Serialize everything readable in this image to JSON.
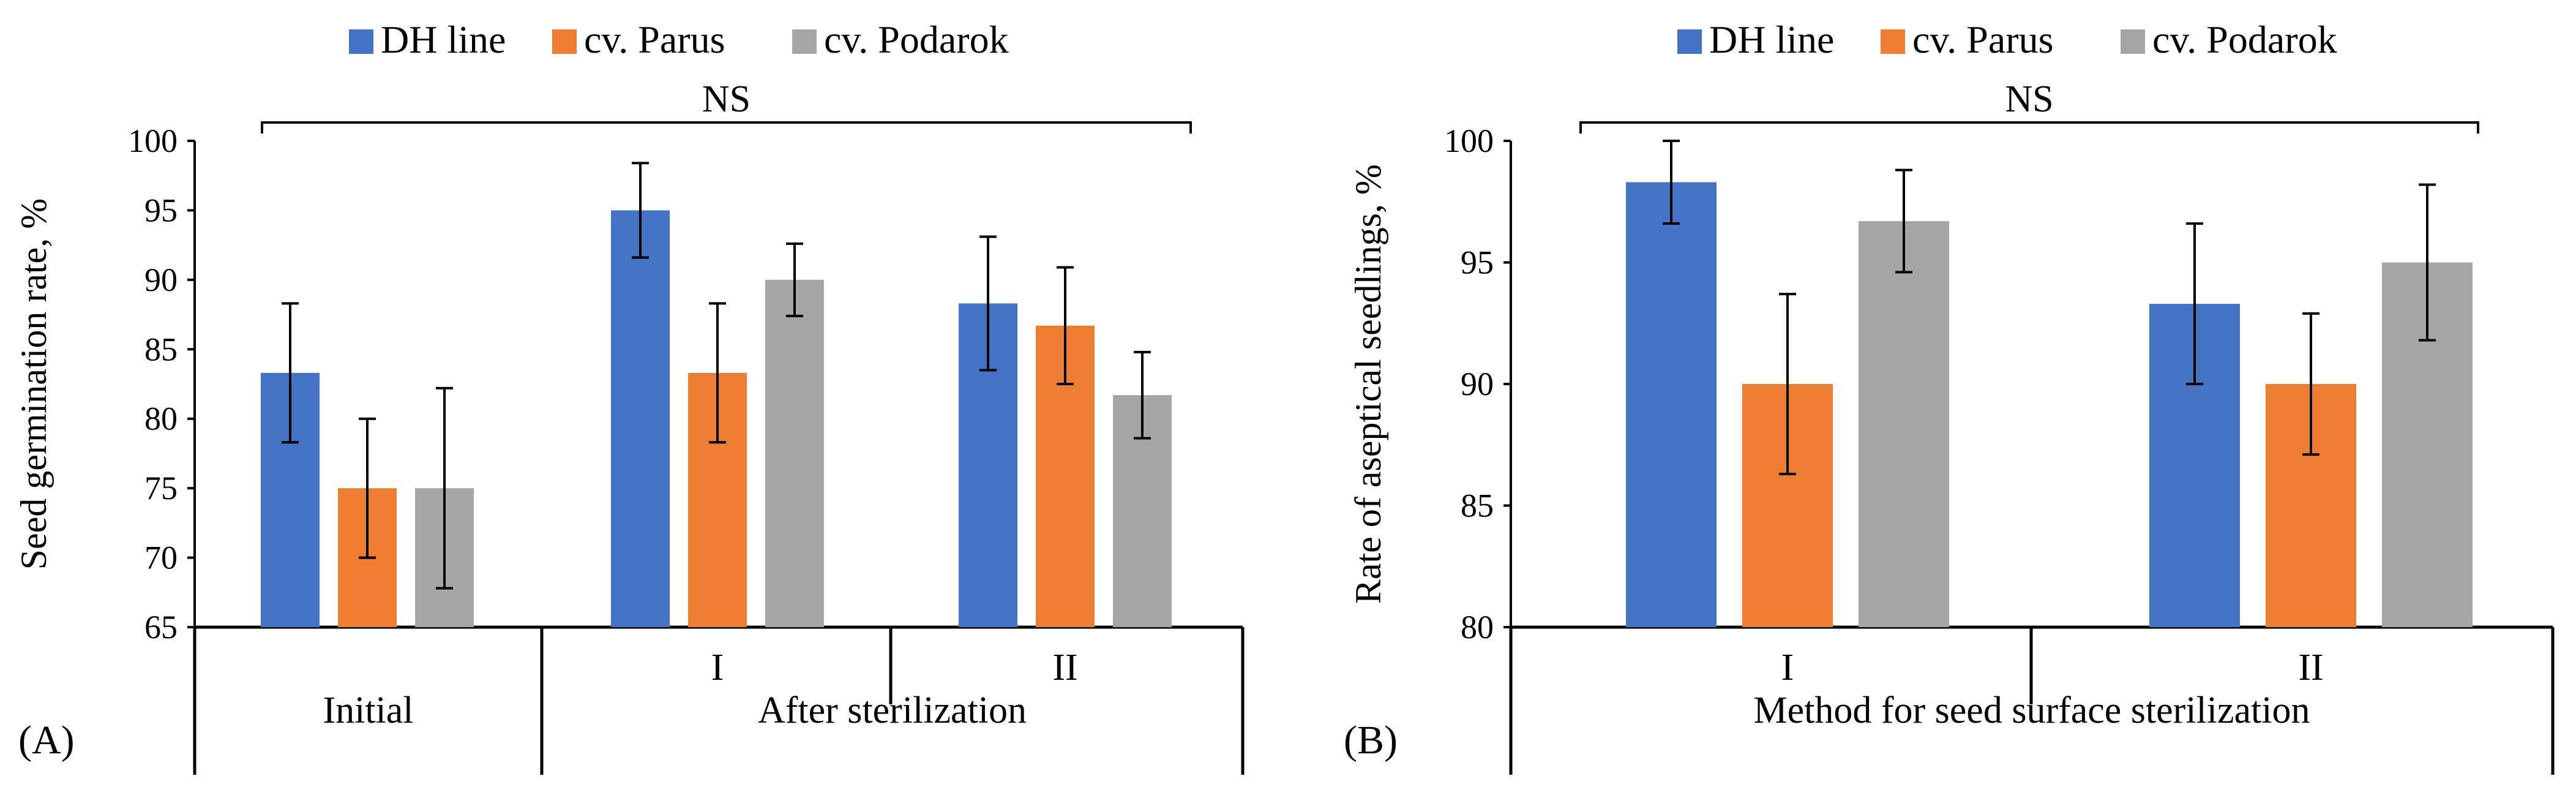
{
  "chart_data": [
    {
      "type": "bar",
      "panel_label": "(A)",
      "ylabel": "Seed germination rate, %",
      "ylim": [
        65,
        100
      ],
      "yticks": [
        65,
        70,
        75,
        80,
        85,
        90,
        95,
        100
      ],
      "significance": "NS",
      "legend": {
        "position": "top"
      },
      "groups": [
        {
          "label": "Initial",
          "subgroups": [
            {
              "label": "",
              "values": [
                83.3,
                75.0,
                75.0
              ],
              "errors": [
                5.0,
                5.0,
                7.2
              ]
            }
          ]
        },
        {
          "label": "After sterilization",
          "subgroups": [
            {
              "label": "I",
              "values": [
                95.0,
                83.3,
                90.0
              ],
              "errors": [
                3.4,
                5.0,
                2.6
              ]
            },
            {
              "label": "II",
              "values": [
                88.3,
                86.7,
                81.7
              ],
              "errors": [
                4.8,
                4.2,
                3.1
              ]
            }
          ]
        }
      ],
      "series": [
        {
          "name": "DH line",
          "color": "#4472C4"
        },
        {
          "name": "cv. Parus",
          "color": "#ED7D31"
        },
        {
          "name": "cv. Podarok",
          "color": "#A5A5A5"
        }
      ]
    },
    {
      "type": "bar",
      "panel_label": "(B)",
      "ylabel": "Rate of aseptical seedlings, %",
      "ylim": [
        80,
        100
      ],
      "yticks": [
        80,
        85,
        90,
        95,
        100
      ],
      "significance": "NS",
      "legend": {
        "position": "top"
      },
      "groups": [
        {
          "label": "Method for seed surface sterilization",
          "subgroups": [
            {
              "label": "I",
              "values": [
                98.3,
                90.0,
                96.7
              ],
              "errors": [
                1.7,
                3.7,
                2.1
              ]
            },
            {
              "label": "II",
              "values": [
                93.3,
                90.0,
                95.0
              ],
              "errors": [
                3.3,
                2.9,
                3.2
              ]
            }
          ]
        }
      ],
      "series": [
        {
          "name": "DH line",
          "color": "#4472C4"
        },
        {
          "name": "cv. Parus",
          "color": "#ED7D31"
        },
        {
          "name": "cv. Podarok",
          "color": "#A5A5A5"
        }
      ]
    }
  ]
}
